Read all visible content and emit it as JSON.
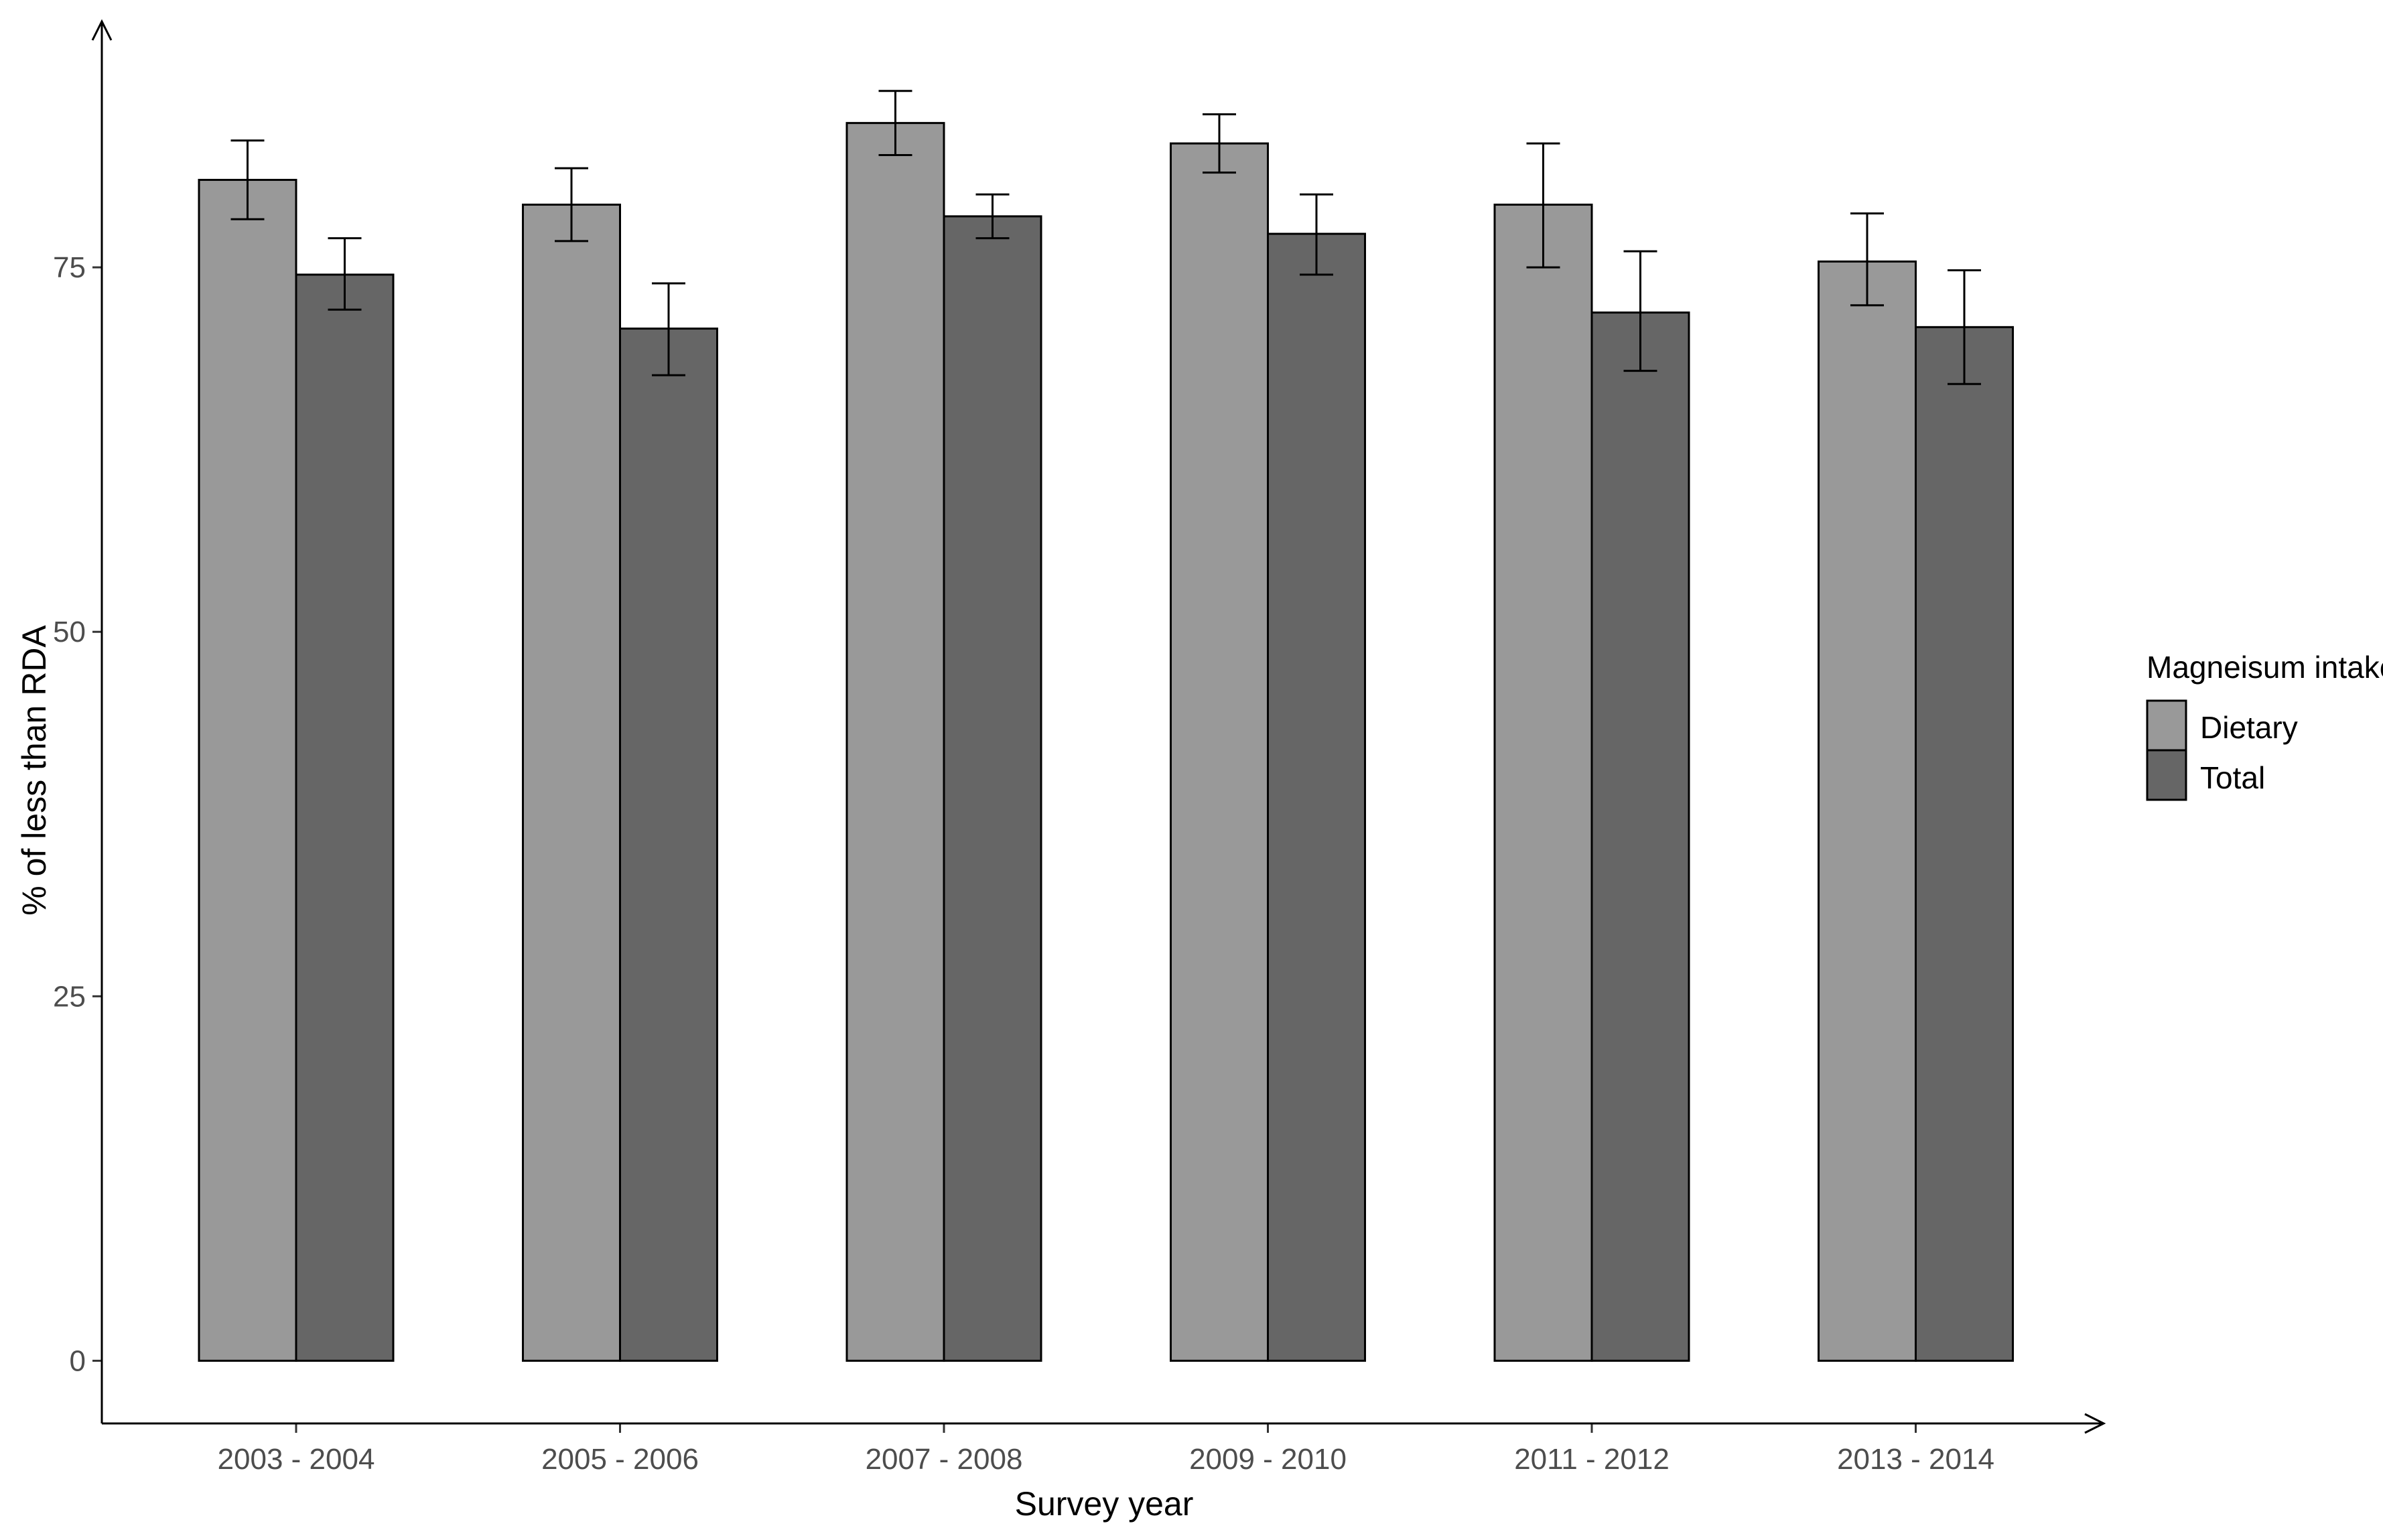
{
  "chart_data": {
    "type": "bar",
    "title": "",
    "xlabel": "Survey year",
    "ylabel": "% of less than RDA",
    "categories": [
      "2003 - 2004",
      "2005 - 2006",
      "2007 - 2008",
      "2009 - 2010",
      "2011 - 2012",
      "2013 - 2014"
    ],
    "series": [
      {
        "name": "Dietary",
        "color": "#999999",
        "values": [
          81.0,
          79.3,
          84.9,
          83.5,
          79.3,
          75.4
        ],
        "err_low": [
          78.3,
          76.8,
          82.7,
          81.5,
          75.0,
          72.4
        ],
        "err_high": [
          83.7,
          81.8,
          87.1,
          85.5,
          83.5,
          78.7
        ]
      },
      {
        "name": "Total",
        "color": "#666666",
        "values": [
          74.5,
          70.8,
          78.5,
          77.3,
          71.9,
          70.9
        ],
        "err_low": [
          72.1,
          67.6,
          77.0,
          74.5,
          67.9,
          67.0
        ],
        "err_high": [
          77.0,
          73.9,
          80.0,
          80.0,
          76.1,
          74.8
        ]
      }
    ],
    "ylim": [
      -4.3,
      91.5
    ],
    "yticks": [
      0,
      25,
      50,
      75
    ],
    "grid": false,
    "legend": {
      "title": "Magneisum intake",
      "position": "right"
    }
  }
}
